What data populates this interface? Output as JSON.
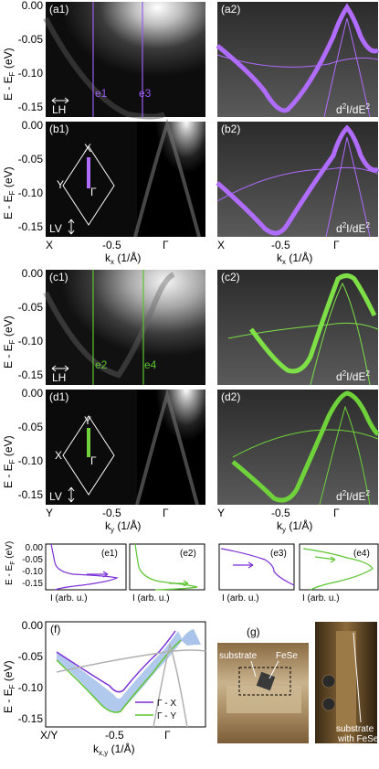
{
  "axis": {
    "yticks": [
      "0.00",
      "-0.05",
      "-0.10",
      "-0.15"
    ],
    "ylabel": "E - E",
    "ylabel_sub": "F",
    "ylabel_unit": " (eV)",
    "xticks_x": [
      "X",
      "-0.5",
      "Γ"
    ],
    "xticks_y": [
      "Y",
      "-0.5",
      "Γ"
    ],
    "xticks_xy": [
      "X/Y",
      "-0.5",
      "Γ"
    ],
    "xlabel_kx": "k",
    "xlabel_kx_sub": "x",
    "xlabel_ky_sub": "y",
    "xlabel_kxy_sub": "x,y",
    "xlabel_unit": " (1/Å)",
    "edc_xlabel": "I (arb. u.)",
    "edc_yticks": [
      "0.00",
      "-0.05",
      "-0.10",
      "-0.15"
    ]
  },
  "panels": {
    "a1": "(a1)",
    "a2": "(a2)",
    "b1": "(b1)",
    "b2": "(b2)",
    "c1": "(c1)",
    "c2": "(c2)",
    "d1": "(d1)",
    "d2": "(d2)",
    "e1": "(e1)",
    "e2": "(e2)",
    "e3": "(e3)",
    "e4": "(e4)",
    "f": "(f)",
    "g": "(g)"
  },
  "annotations": {
    "cut_e1": "e1",
    "cut_e3": "e3",
    "cut_e2": "e2",
    "cut_e4": "e4",
    "lh": "LH",
    "lv": "LV",
    "d2ide2": "d",
    "d2ide2_sup": "2",
    "d2ide2_mid": "I/dE",
    "d2ide2_sup2": "2",
    "bz_x": "X",
    "bz_y": "Y",
    "bz_gamma": "Γ"
  },
  "legend_f": [
    {
      "label": "Γ - X",
      "color": "#7b2fd6"
    },
    {
      "label": "Γ - Y",
      "color": "#5cc431"
    }
  ],
  "photo": {
    "substrate": "substrate",
    "fese": "FeSe",
    "substrate_with": "substrate",
    "with_fese": "with FeSe"
  },
  "colors": {
    "purple": "#8a3fe0",
    "green": "#6fd23a",
    "gray": "#b0b0b0",
    "blue_fill": "#a9c3ea"
  }
}
